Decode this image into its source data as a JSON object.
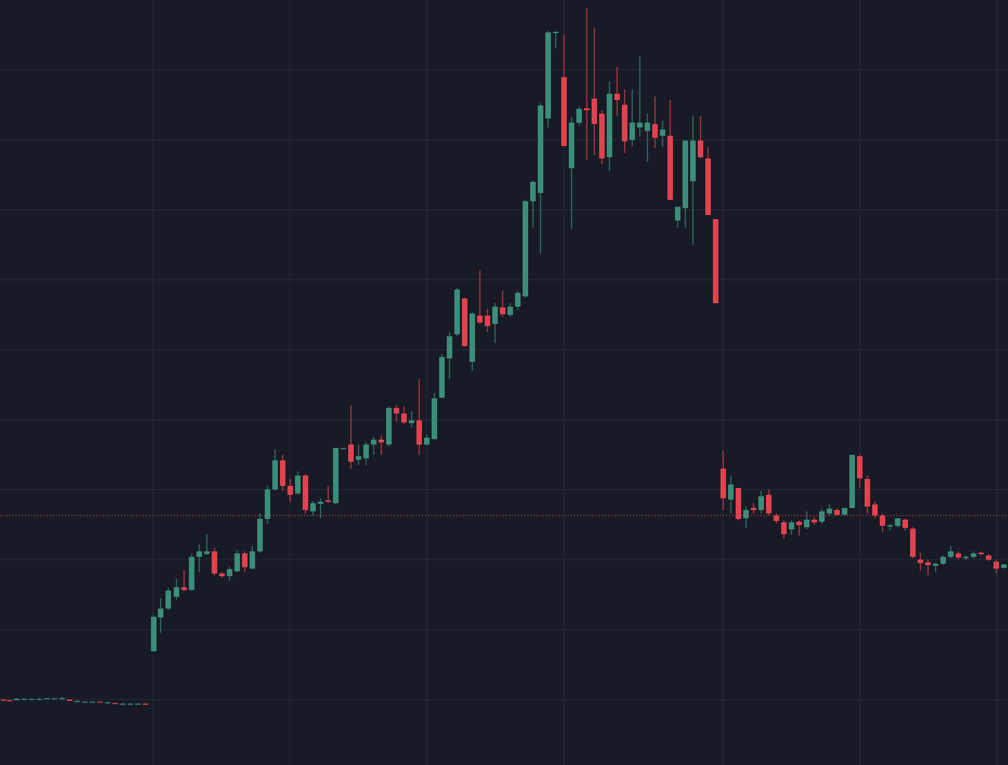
{
  "chart_data": {
    "type": "candlestick",
    "x": [
      5,
      14,
      24,
      35,
      46,
      57,
      68,
      79,
      90,
      101,
      112,
      123,
      134,
      145,
      156,
      167,
      178,
      189,
      200,
      211,
      223,
      233,
      244,
      256,
      267,
      278,
      289,
      300,
      311,
      322,
      333,
      344,
      355,
      366,
      377,
      388,
      399,
      410,
      421,
      432,
      443,
      454,
      465,
      476,
      487,
      498,
      509,
      520,
      531,
      542,
      553,
      564,
      575,
      586,
      597,
      608,
      619,
      630,
      641,
      652,
      663,
      674,
      685,
      696,
      707,
      718,
      729,
      740,
      751,
      762,
      773,
      784,
      795,
      806,
      818,
      829,
      840,
      851,
      862,
      873,
      884,
      895,
      906,
      917,
      928,
      939,
      950,
      961,
      972,
      983,
      994,
      1005,
      1016,
      1027,
      1038,
      1049,
      1060,
      1071,
      1082,
      1093,
      1104,
      1115,
      1126,
      1137,
      1148,
      1159,
      1170,
      1181,
      1192,
      1203,
      1214,
      1225,
      1236,
      1247,
      1258,
      1269,
      1280,
      1291,
      1302,
      1313,
      1324,
      1335,
      1346,
      1357,
      1368,
      1379,
      1390,
      1401,
      1412,
      1423,
      1434,
      1445,
      1456
    ],
    "open": [
      95,
      94,
      94,
      96,
      96,
      96,
      96,
      96,
      97,
      95,
      93,
      92,
      91,
      92,
      91,
      90,
      89,
      89,
      89,
      89,
      165,
      214,
      227,
      244,
      258,
      254,
      302,
      306,
      310,
      278,
      274,
      281,
      307,
      285,
      310,
      357,
      400,
      442,
      405,
      394,
      420,
      368,
      379,
      384,
      380,
      459,
      465,
      443,
      445,
      465,
      472,
      465,
      518,
      510,
      496,
      500,
      465,
      473,
      533,
      590,
      625,
      677,
      585,
      652,
      652,
      640,
      664,
      653,
      665,
      680,
      818,
      830,
      938,
      1062,
      998,
      866,
      932,
      953,
      967,
      945,
      882,
      974,
      958,
      907,
      925,
      920,
      930,
      913,
      913,
      790,
      808,
      847,
      906,
      880,
      792,
      430,
      385,
      402,
      358,
      373,
      370,
      392,
      362,
      352,
      342,
      353,
      345,
      356,
      353,
      365,
      370,
      363,
      373,
      448,
      415,
      378,
      362,
      346,
      347,
      356,
      343,
      298,
      294,
      289,
      292,
      302,
      307,
      300,
      302,
      308,
      304,
      295,
      286
    ],
    "high": [
      95,
      95,
      97,
      97,
      96,
      97,
      97,
      97,
      99,
      95,
      94,
      92,
      92,
      92,
      92,
      90,
      90,
      90,
      90,
      90,
      217,
      242,
      257,
      270,
      282,
      307,
      320,
      335,
      315,
      280,
      288,
      312,
      310,
      318,
      365,
      405,
      458,
      450,
      415,
      426,
      422,
      383,
      387,
      405,
      460,
      460,
      522,
      465,
      468,
      476,
      478,
      520,
      522,
      520,
      513,
      560,
      480,
      540,
      596,
      628,
      692,
      678,
      657,
      718,
      662,
      670,
      688,
      670,
      688,
      820,
      848,
      960,
      1065,
      1064,
      1060,
      940,
      955,
      1098,
      1070,
      950,
      992,
      1013,
      980,
      980,
      1028,
      945,
      970,
      935,
      965,
      810,
      906,
      942,
      942,
      897,
      792,
      456,
      420,
      402,
      375,
      380,
      398,
      400,
      365,
      355,
      355,
      355,
      368,
      360,
      372,
      378,
      372,
      373,
      450,
      450,
      420,
      382,
      365,
      350,
      358,
      358,
      345,
      308,
      298,
      294,
      304,
      318,
      310,
      304,
      310,
      310,
      306,
      298,
      292
    ],
    "low": [
      93,
      93,
      94,
      95,
      95,
      95,
      96,
      96,
      96,
      93,
      92,
      91,
      91,
      91,
      90,
      89,
      89,
      89,
      89,
      87,
      165,
      192,
      225,
      240,
      252,
      253,
      280,
      305,
      275,
      272,
      267,
      280,
      280,
      284,
      308,
      350,
      398,
      398,
      382,
      392,
      365,
      362,
      358,
      380,
      378,
      459,
      430,
      435,
      435,
      450,
      450,
      462,
      498,
      495,
      490,
      450,
      463,
      472,
      532,
      560,
      622,
      607,
      572,
      640,
      628,
      612,
      650,
      650,
      660,
      678,
      780,
      742,
      925,
      1040,
      898,
      778,
      928,
      878,
      885,
      872,
      862,
      942,
      888,
      898,
      912,
      875,
      895,
      897,
      820,
      780,
      780,
      755,
      880,
      798,
      670,
      370,
      365,
      355,
      344,
      365,
      365,
      362,
      350,
      328,
      334,
      333,
      342,
      348,
      350,
      362,
      362,
      362,
      372,
      402,
      365,
      358,
      338,
      340,
      345,
      340,
      300,
      282,
      275,
      280,
      290,
      300,
      298,
      298,
      300,
      304,
      296,
      278,
      285
    ],
    "close": [
      94,
      93,
      96,
      96,
      96,
      96,
      97,
      97,
      97,
      93,
      93,
      92,
      92,
      91,
      91,
      89,
      89,
      89,
      89,
      88,
      215,
      227,
      253,
      258,
      254,
      302,
      310,
      310,
      278,
      274,
      284,
      307,
      287,
      310,
      357,
      400,
      442,
      405,
      392,
      420,
      370,
      380,
      382,
      382,
      460,
      460,
      440,
      448,
      465,
      472,
      468,
      518,
      510,
      497,
      500,
      465,
      475,
      532,
      592,
      622,
      690,
      608,
      655,
      642,
      637,
      665,
      654,
      665,
      685,
      818,
      846,
      957,
      1063,
      1064,
      898,
      932,
      952,
      950,
      930,
      880,
      974,
      965,
      905,
      932,
      932,
      932,
      910,
      922,
      820,
      810,
      906,
      906,
      882,
      798,
      670,
      387,
      407,
      357,
      370,
      370,
      390,
      365,
      354,
      335,
      352,
      348,
      356,
      352,
      368,
      372,
      363,
      373,
      450,
      416,
      375,
      362,
      347,
      348,
      358,
      344,
      302,
      293,
      290,
      292,
      302,
      310,
      301,
      302,
      307,
      306,
      298,
      285,
      291
    ],
    "up_color": "#3b8d7b",
    "down_color": "#e0434f",
    "xlim": [
      0,
      1462
    ],
    "ylim": [
      0,
      1110
    ],
    "xticks": [
      222,
      420,
      619,
      818,
      1048,
      1247,
      1446
    ],
    "yticks": [
      95,
      196.5,
      298,
      399.5,
      501,
      602.5,
      704,
      805.5,
      907,
      1008.5
    ],
    "grid": true,
    "grid_color": "#2a2e39",
    "price_line": 362,
    "price_line_color": "#e0434f"
  }
}
